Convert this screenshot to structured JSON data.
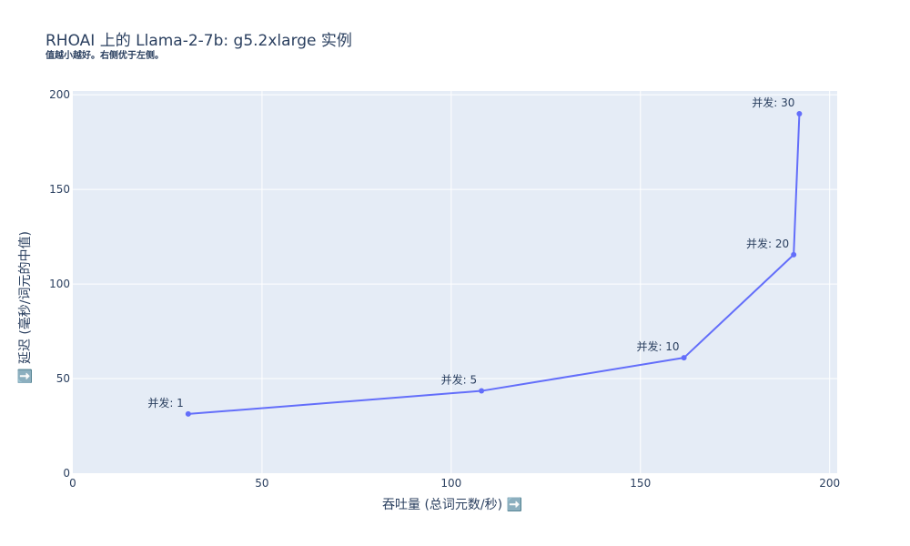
{
  "chart_data": {
    "type": "line",
    "title": "RHOAI 上的 Llama-2-7b: g5.2xlarge 实例",
    "subtitle": "值越小越好。右侧优于左侧。",
    "xlabel": "吞吐量 (总词元数/秒) ➡️",
    "ylabel": "⬇️ 延迟 (毫秒/词元的中值)",
    "xlim": [
      0,
      202
    ],
    "ylim": [
      0,
      202
    ],
    "x_ticks": [
      0,
      50,
      100,
      150,
      200
    ],
    "y_ticks": [
      0,
      50,
      100,
      150,
      200
    ],
    "grid": true,
    "series": [
      {
        "color": "#636efa",
        "points": [
          {
            "x": 30.5,
            "y": 31.3,
            "label": "并发: 1"
          },
          {
            "x": 108,
            "y": 43.5,
            "label": "并发: 5"
          },
          {
            "x": 161.5,
            "y": 61,
            "label": "并发: 10"
          },
          {
            "x": 190.5,
            "y": 115.5,
            "label": "并发: 20"
          },
          {
            "x": 192,
            "y": 190,
            "label": "并发: 30"
          }
        ]
      }
    ]
  },
  "colors": {
    "plot_bg": "#e5ecf6",
    "grid": "#ffffff",
    "text": "#2a3f5f",
    "line": "#636efa"
  }
}
